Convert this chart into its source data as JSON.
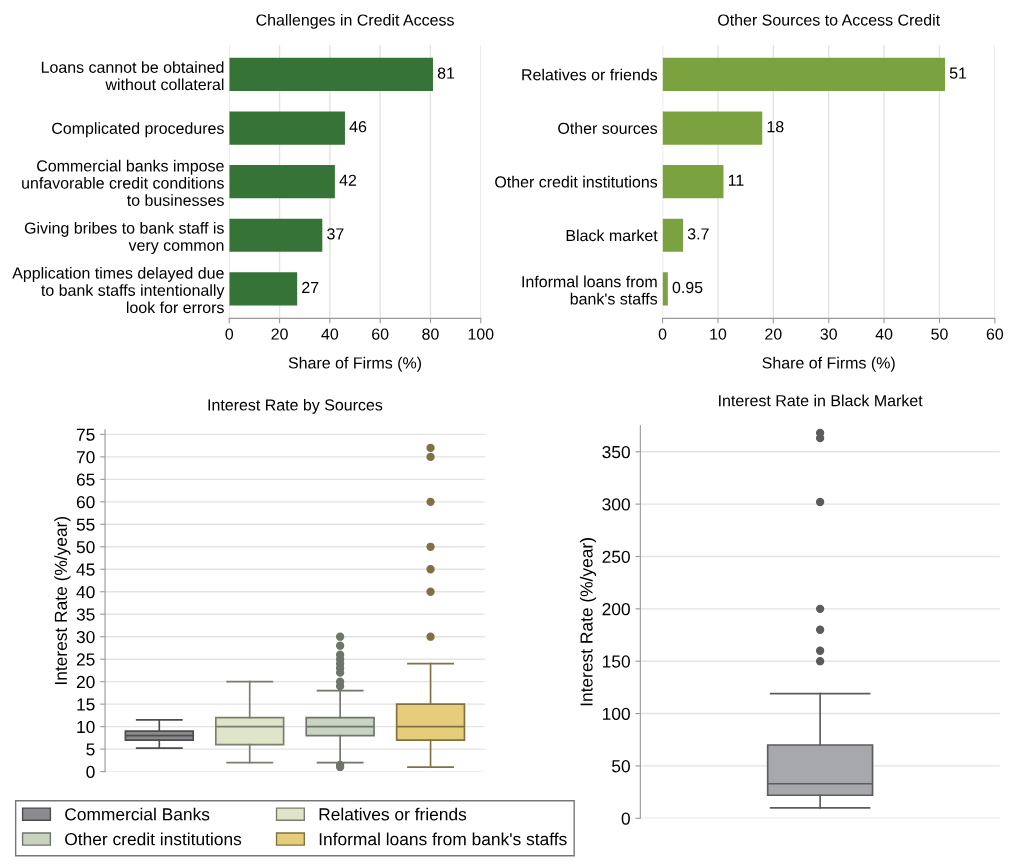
{
  "chart_data": [
    {
      "type": "bar",
      "orientation": "horizontal",
      "title": "Challenges in Credit Access",
      "xlabel": "Share of Firms (%)",
      "categories": [
        "Loans cannot be obtained\nwithout collateral",
        "Complicated procedures",
        "Commercial banks impose\nunfavorable credit conditions\nto businesses",
        "Giving bribes to bank staff is\nvery common",
        "Application times delayed due\nto bank staffs intentionally\nlook for errors"
      ],
      "values": [
        81,
        46,
        42,
        37,
        27
      ],
      "color": "#367336",
      "xlim": [
        0,
        100
      ],
      "xticks": [
        0,
        20,
        40,
        60,
        80,
        100
      ],
      "grid": "x",
      "data_labels": true
    },
    {
      "type": "bar",
      "orientation": "horizontal",
      "title": "Other Sources to Access Credit",
      "xlabel": "Share of Firms (%)",
      "categories": [
        "Relatives or friends",
        "Other sources",
        "Other credit institutions",
        "Black market",
        "Informal loans from\nbank's staffs"
      ],
      "values": [
        51,
        18,
        11,
        3.7,
        0.95
      ],
      "color": "#7aa33f",
      "xlim": [
        0,
        60
      ],
      "xticks": [
        0,
        10,
        20,
        30,
        40,
        50,
        60
      ],
      "grid": "x",
      "data_labels": true
    },
    {
      "type": "box",
      "title": "Interest Rate by Sources",
      "ylabel": "Interest Rate (%/year)",
      "categories": [
        null,
        null,
        null,
        null
      ],
      "ylim": [
        0,
        76
      ],
      "yticks": [
        0,
        5,
        10,
        15,
        20,
        25,
        30,
        35,
        40,
        45,
        50,
        55,
        60,
        65,
        70,
        75
      ],
      "grid": "y",
      "legend": "bottom",
      "series": [
        {
          "name": "Commercial Banks",
          "color": "#8a8b8e",
          "boxes": [
            {
              "low": 5.2,
              "q1": 7,
              "median": 8,
              "q3": 9,
              "high": 11.5
            },
            null,
            null,
            null
          ]
        },
        {
          "name": "Relatives or friends",
          "color": "#dfe5c8",
          "boxes": [
            null,
            {
              "low": 2,
              "q1": 6,
              "median": 10,
              "q3": 12,
              "high": 20
            },
            null,
            null
          ]
        },
        {
          "name": "Other credit institutions",
          "color": "#c8d4c0",
          "boxes": [
            null,
            null,
            {
              "low": 2,
              "q1": 8,
              "median": 10,
              "q3": 12,
              "high": 18,
              "outliers": [
                1,
                1.5,
                19,
                20,
                22,
                23,
                24,
                25,
                26,
                28,
                30
              ]
            },
            null
          ]
        },
        {
          "name": "Informal loans from bank's staffs",
          "color": "#e6cd7a",
          "boxes": [
            null,
            null,
            null,
            {
              "low": 1,
              "q1": 7,
              "median": 10,
              "q3": 15,
              "high": 24,
              "outliers": [
                30,
                40,
                45,
                50,
                60,
                70,
                72
              ]
            }
          ]
        }
      ]
    },
    {
      "type": "box",
      "title": "Interest Rate in Black Market",
      "ylabel": "Interest Rate (%/year)",
      "categories": [
        null
      ],
      "ylim": [
        0,
        375
      ],
      "yticks": [
        0,
        50,
        100,
        150,
        200,
        250,
        300,
        350
      ],
      "grid": "y",
      "series": [
        {
          "color": "#a7a8ab",
          "boxes": [
            {
              "low": 10,
              "q1": 22,
              "median": 33,
              "q3": 70,
              "high": 119,
              "outliers": [
                150,
                160,
                180,
                200,
                302,
                363,
                368
              ]
            }
          ]
        }
      ]
    }
  ]
}
